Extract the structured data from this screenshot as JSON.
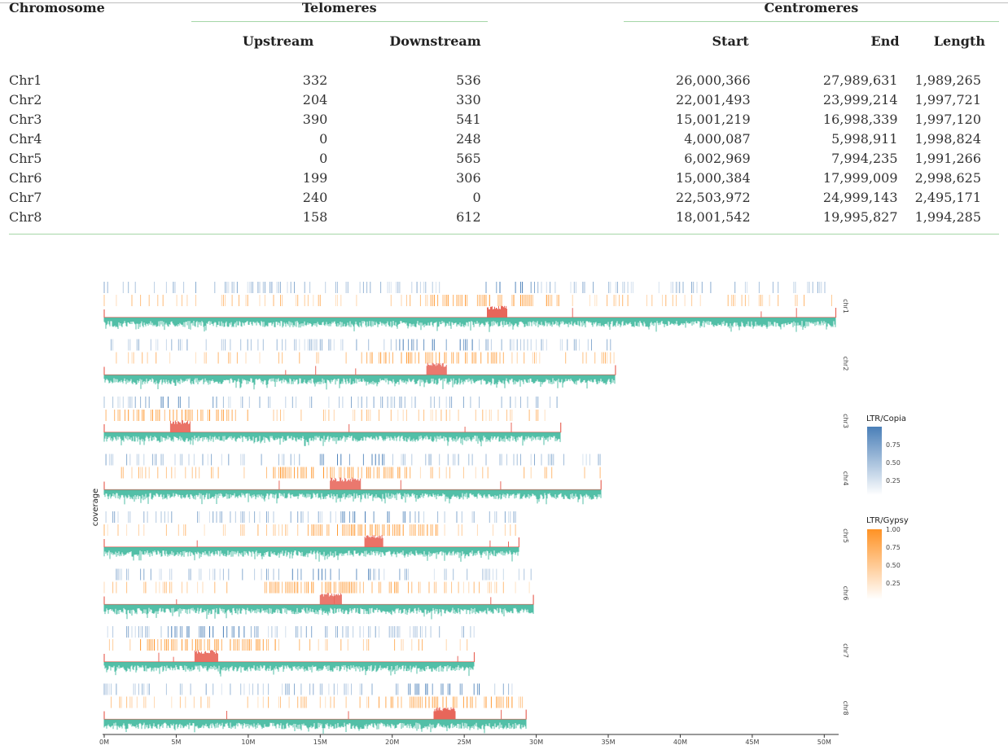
{
  "table": {
    "headers": {
      "chromosome": "Chromosome",
      "telomeres": "Telomeres",
      "centromeres": "Centromeres",
      "upstream": "Upstream",
      "downstream": "Downstream",
      "start": "Start",
      "end": "End",
      "length": "Length"
    },
    "rows": [
      {
        "chr": "Chr1",
        "up": "332",
        "down": "536",
        "start": "26,000,366",
        "end": "27,989,631",
        "length": "1,989,265"
      },
      {
        "chr": "Chr2",
        "up": "204",
        "down": "330",
        "start": "22,001,493",
        "end": "23,999,214",
        "length": "1,997,721"
      },
      {
        "chr": "Chr3",
        "up": "390",
        "down": "541",
        "start": "15,001,219",
        "end": "16,998,339",
        "length": "1,997,120"
      },
      {
        "chr": "Chr4",
        "up": "0",
        "down": "248",
        "start": "4,000,087",
        "end": "5,998,911",
        "length": "1,998,824"
      },
      {
        "chr": "Chr5",
        "up": "0",
        "down": "565",
        "start": "6,002,969",
        "end": "7,994,235",
        "length": "1,991,266"
      },
      {
        "chr": "Chr6",
        "up": "199",
        "down": "306",
        "start": "15,000,384",
        "end": "17,999,009",
        "length": "2,998,625"
      },
      {
        "chr": "Chr7",
        "up": "240",
        "down": "0",
        "start": "22,503,972",
        "end": "24,999,143",
        "length": "2,495,171"
      },
      {
        "chr": "Chr8",
        "up": "158",
        "down": "612",
        "start": "18,001,542",
        "end": "19,995,827",
        "length": "1,994,285"
      }
    ]
  },
  "chart_data": {
    "type": "bar",
    "ylabel": "coverage",
    "x_ticks": [
      "0M",
      "5M",
      "10M",
      "15M",
      "20M",
      "25M",
      "30M",
      "35M",
      "40M",
      "45M",
      "50M"
    ],
    "xlim_mb": [
      0,
      51
    ],
    "chromosomes": [
      {
        "label": "chr1",
        "length_mb": 50.8,
        "centromere_mb": [
          26.6,
          28.0
        ]
      },
      {
        "label": "chr2",
        "length_mb": 35.5,
        "centromere_mb": [
          22.4,
          23.8
        ]
      },
      {
        "label": "chr3",
        "length_mb": 31.7,
        "centromere_mb": [
          4.6,
          6.0
        ]
      },
      {
        "label": "chr4",
        "length_mb": 34.5,
        "centromere_mb": [
          15.7,
          17.8
        ]
      },
      {
        "label": "chr5",
        "length_mb": 28.8,
        "centromere_mb": [
          18.1,
          19.4
        ]
      },
      {
        "label": "chr6",
        "length_mb": 29.8,
        "centromere_mb": [
          15.0,
          16.5
        ]
      },
      {
        "label": "chr7",
        "length_mb": 25.7,
        "centromere_mb": [
          6.3,
          7.9
        ]
      },
      {
        "label": "chr8",
        "length_mb": 29.3,
        "centromere_mb": [
          22.9,
          24.4
        ]
      }
    ],
    "legend": [
      {
        "title": "LTR/Copia",
        "color": "#4a7fb8",
        "ticks": [
          "0.75",
          "0.50",
          "0.25"
        ]
      },
      {
        "title": "LTR/Gypsy",
        "color": "#ff9224",
        "ticks": [
          "1.00",
          "0.75",
          "0.50",
          "0.25"
        ]
      }
    ],
    "colors": {
      "coverage": "#3fb89e",
      "telomere_centromere": "#e8665a",
      "copia": "#4a7fb8",
      "gypsy": "#ff9224"
    }
  }
}
